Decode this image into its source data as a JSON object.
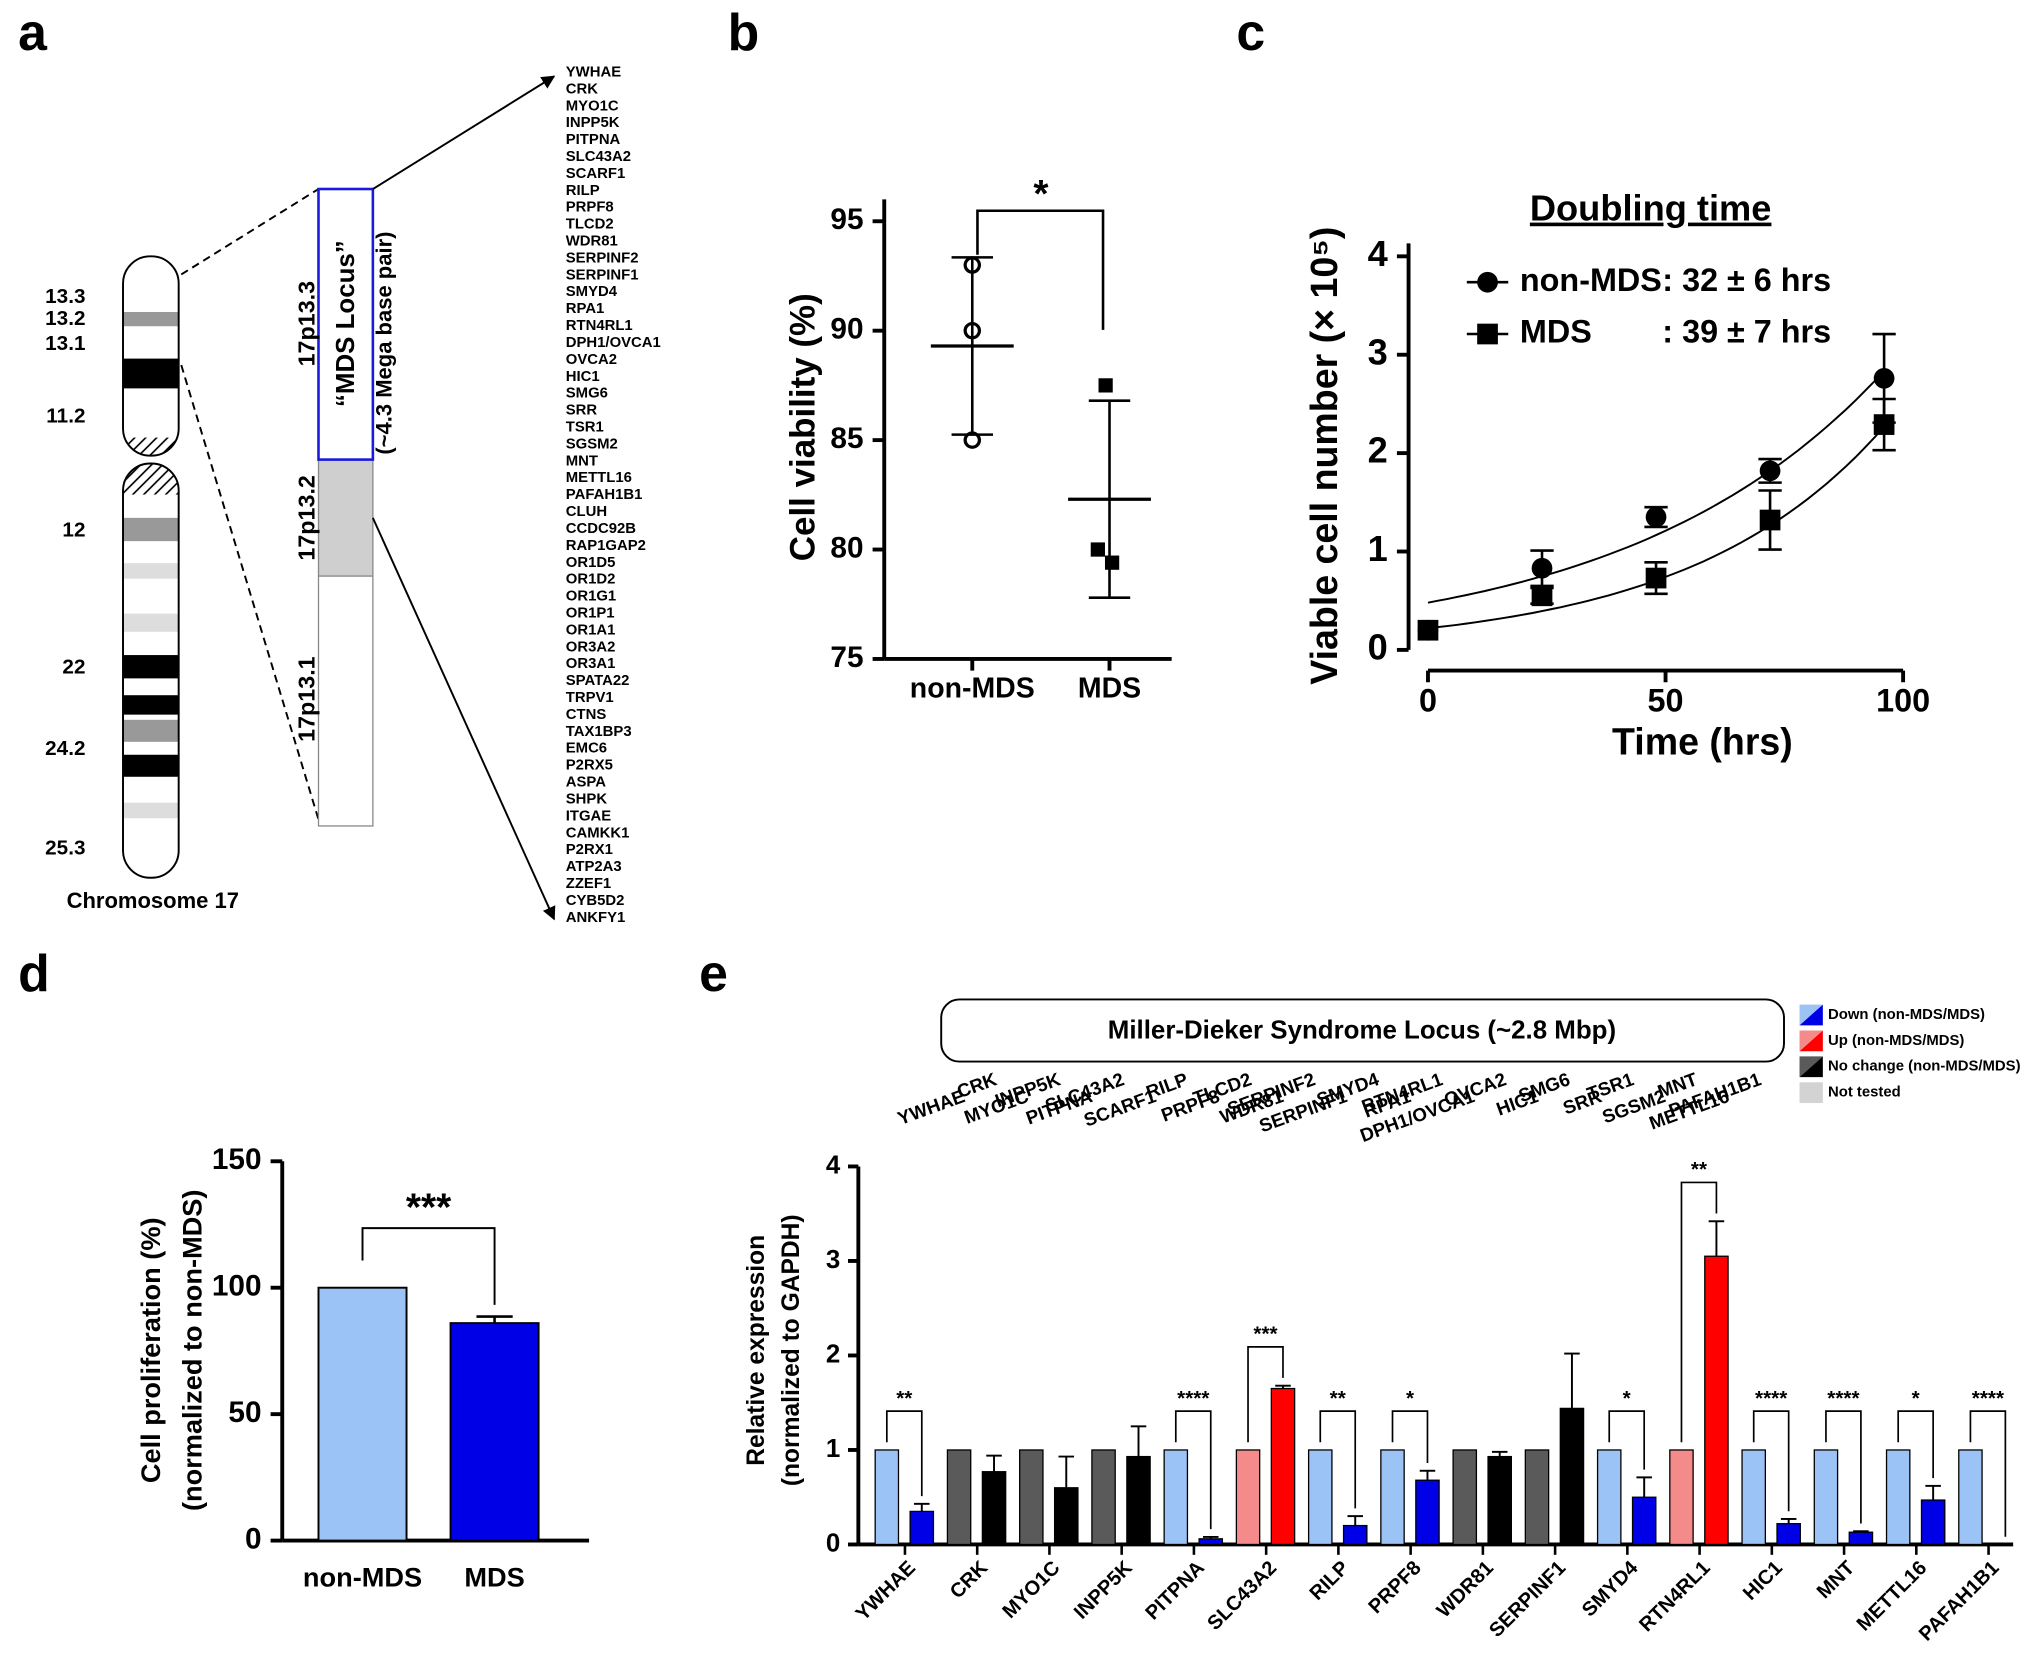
{
  "panel_a": {
    "label": "a",
    "band_labels": [
      "13.3",
      "13.2",
      "13.1",
      "11.2",
      "12",
      "22",
      "24.2",
      "25.3"
    ],
    "caption": "Chromosome 17",
    "regions": [
      "17p13.3",
      "17p13.2",
      "17p13.1"
    ],
    "locus_title": "“MDS Locus”",
    "locus_size": "(~4.3 Mega base pair)",
    "locus_genes": {
      "color": "#1a1adb",
      "names": [
        "YWHAE",
        "CRK",
        "MYO1C",
        "INPP5K",
        "PITPNA",
        "SLC43A2",
        "SCARF1",
        "RILP",
        "PRPF8",
        "TLCD2",
        "WDR81",
        "SERPINF2",
        "SERPINF1",
        "SMYD4",
        "RPA1",
        "RTN4RL1",
        "DPH1/OVCA1",
        "OVCA2",
        "HIC1",
        "SMG6",
        "SRR",
        "TSR1",
        "SGSM2",
        "MNT",
        "METTL16",
        "PAFAH1B1",
        "CLUH",
        "CCDC92B",
        "RAP1GAP2"
      ]
    },
    "other_genes": {
      "color": "#808080",
      "names": [
        "OR1D5",
        "OR1D2",
        "OR1G1",
        "OR1P1",
        "OR1A1",
        "OR3A2",
        "OR3A1",
        "SPATA22",
        "TRPV1",
        "CTNS",
        "TAX1BP3",
        "EMC6",
        "P2RX5",
        "ASPA",
        "SHPK",
        "ITGAE",
        "CAMKK1",
        "P2RX1",
        "ATP2A3",
        "ZZEF1",
        "CYB5D2",
        "ANKFY1"
      ]
    }
  },
  "chart_data": [
    {
      "panel": "b",
      "type": "dot",
      "ylabel": "Cell viability (%)",
      "categories": [
        "non-MDS",
        "MDS"
      ],
      "points": [
        [
          93,
          90,
          85
        ],
        [
          87.5,
          80,
          79.4
        ]
      ],
      "means": [
        89.3,
        82.3
      ],
      "errors": [
        4.05,
        4.5
      ],
      "markers": [
        "open-circle",
        "square"
      ],
      "ylim": [
        75,
        96
      ],
      "yticks": [
        75,
        80,
        85,
        90,
        95
      ],
      "significance": "*"
    },
    {
      "panel": "c",
      "type": "line",
      "title": "Doubling time",
      "xlabel": "Time (hrs)",
      "ylabel": "Viable cell number (× 10⁵)",
      "x": [
        0,
        24,
        48,
        72,
        96
      ],
      "series": [
        {
          "name": "non-MDS",
          "note": ": 32 ± 6 hrs",
          "marker": "circle",
          "color": "#000000",
          "values": [
            0.2,
            0.83,
            1.35,
            1.82,
            2.76
          ],
          "errors": [
            0,
            0.18,
            0.1,
            0.12,
            0.45
          ],
          "fit": {
            "a": 0.48,
            "k": 0.0185
          }
        },
        {
          "name": "MDS",
          "note": ": 39 ± 7 hrs",
          "marker": "square",
          "color": "#000000",
          "values": [
            0.2,
            0.55,
            0.73,
            1.32,
            2.29
          ],
          "errors": [
            0,
            0.08,
            0.16,
            0.3,
            0.26
          ],
          "fit": {
            "a": 0.22,
            "k": 0.0243
          }
        }
      ],
      "xlim": [
        0,
        100
      ],
      "xticks": [
        0,
        50,
        100
      ],
      "ylim": [
        0,
        4
      ],
      "yticks": [
        0,
        1,
        2,
        3,
        4
      ]
    },
    {
      "panel": "d",
      "type": "bar",
      "ylabel": [
        "Cell proliferation (%)",
        "(normalized to non-MDS)"
      ],
      "categories": [
        "non-MDS",
        "MDS"
      ],
      "values": [
        100,
        86
      ],
      "errors": [
        0,
        2.6
      ],
      "colors": [
        "#9cc3f5",
        "#0000e6"
      ],
      "ylim": [
        0,
        150
      ],
      "yticks": [
        0,
        50,
        100,
        150
      ],
      "significance": "***"
    },
    {
      "panel": "e",
      "type": "grouped_bar",
      "ylabel": [
        "Relative expression",
        "(normalized to GAPDH)"
      ],
      "locus_title": "Miller-Dieker Syndrome Locus (~2.8 Mbp)",
      "locus_genes": [
        {
          "name": "YWHAE",
          "color": "#1a1adb"
        },
        {
          "name": "CRK",
          "color": "#000000"
        },
        {
          "name": "MYO1C",
          "color": "#000000"
        },
        {
          "name": "INPP5K",
          "color": "#000000"
        },
        {
          "name": "PITPNA",
          "color": "#1a1adb"
        },
        {
          "name": "SLC43A2",
          "color": "#e00000"
        },
        {
          "name": "SCARF1",
          "color": "#a0a0a0"
        },
        {
          "name": "RILP",
          "color": "#1a1adb"
        },
        {
          "name": "PRPF8",
          "color": "#1a1adb"
        },
        {
          "name": "TLCD2",
          "color": "#a0a0a0"
        },
        {
          "name": "WDR81",
          "color": "#000000"
        },
        {
          "name": "SERPINF2",
          "color": "#a0a0a0"
        },
        {
          "name": "SERPINF1",
          "color": "#000000"
        },
        {
          "name": "SMYD4",
          "color": "#1a1adb"
        },
        {
          "name": "RPA1",
          "color": "#a0a0a0"
        },
        {
          "name": "RTN4RL1",
          "color": "#e00000"
        },
        {
          "name": "DPH1/OVCA1",
          "color": "#a0a0a0"
        },
        {
          "name": "OVCA2",
          "color": "#a0a0a0"
        },
        {
          "name": "HIC1",
          "color": "#1a1adb"
        },
        {
          "name": "SMG6",
          "color": "#a0a0a0"
        },
        {
          "name": "SRR",
          "color": "#a0a0a0"
        },
        {
          "name": "TSR1",
          "color": "#a0a0a0"
        },
        {
          "name": "SGSM2",
          "color": "#a0a0a0"
        },
        {
          "name": "MNT",
          "color": "#1a1adb"
        },
        {
          "name": "METTL16",
          "color": "#1a1adb"
        },
        {
          "name": "PAFAH1B1",
          "color": "#1a1adb"
        }
      ],
      "legend": [
        {
          "label": "Down (non-MDS/MDS)",
          "colors": [
            "#9cc3f5",
            "#0000e6"
          ]
        },
        {
          "label": "Up (non-MDS/MDS)",
          "colors": [
            "#f58a8a",
            "#ff0000"
          ]
        },
        {
          "label": "No change (non-MDS/MDS)",
          "colors": [
            "#5a5a5a",
            "#000000"
          ]
        },
        {
          "label": "Not tested",
          "colors": [
            "#d3d3d3"
          ]
        }
      ],
      "categories": [
        "YWHAE",
        "CRK",
        "MYO1C",
        "INPP5K",
        "PITPNA",
        "SLC43A2",
        "RILP",
        "PRPF8",
        "WDR81",
        "SERPINF1",
        "SMYD4",
        "RTN4RL1",
        "HIC1",
        "MNT",
        "METTL16",
        "PAFAH1B1"
      ],
      "series": [
        {
          "values": [
            1,
            1,
            1,
            1,
            1,
            1,
            1,
            1,
            1,
            1,
            1,
            1,
            1,
            1,
            1,
            1
          ],
          "colors": [
            "#9cc3f5",
            "#5a5a5a",
            "#5a5a5a",
            "#5a5a5a",
            "#9cc3f5",
            "#f58a8a",
            "#9cc3f5",
            "#9cc3f5",
            "#5a5a5a",
            "#5a5a5a",
            "#9cc3f5",
            "#f58a8a",
            "#9cc3f5",
            "#9cc3f5",
            "#9cc3f5",
            "#9cc3f5"
          ]
        },
        {
          "values": [
            0.35,
            0.77,
            0.6,
            0.93,
            0.06,
            1.65,
            0.2,
            0.68,
            0.93,
            1.44,
            0.5,
            3.05,
            0.22,
            0.13,
            0.47,
            0
          ],
          "errors": [
            0.08,
            0.17,
            0.33,
            0.32,
            0.02,
            0.03,
            0.1,
            0.1,
            0.05,
            0.58,
            0.21,
            0.37,
            0.05,
            0.01,
            0.15,
            0
          ],
          "colors": [
            "#0000e6",
            "#000000",
            "#000000",
            "#000000",
            "#0000e6",
            "#ff0000",
            "#0000e6",
            "#0000e6",
            "#000000",
            "#000000",
            "#0000e6",
            "#ff0000",
            "#0000e6",
            "#0000e6",
            "#0000e6",
            "#0000e6"
          ]
        }
      ],
      "significance": [
        "**",
        null,
        null,
        null,
        "****",
        "***",
        "**",
        "*",
        null,
        null,
        "*",
        "**",
        "****",
        "****",
        "*",
        "****"
      ],
      "ylim": [
        0,
        4
      ],
      "yticks": [
        0,
        1,
        2,
        3,
        4
      ]
    }
  ]
}
